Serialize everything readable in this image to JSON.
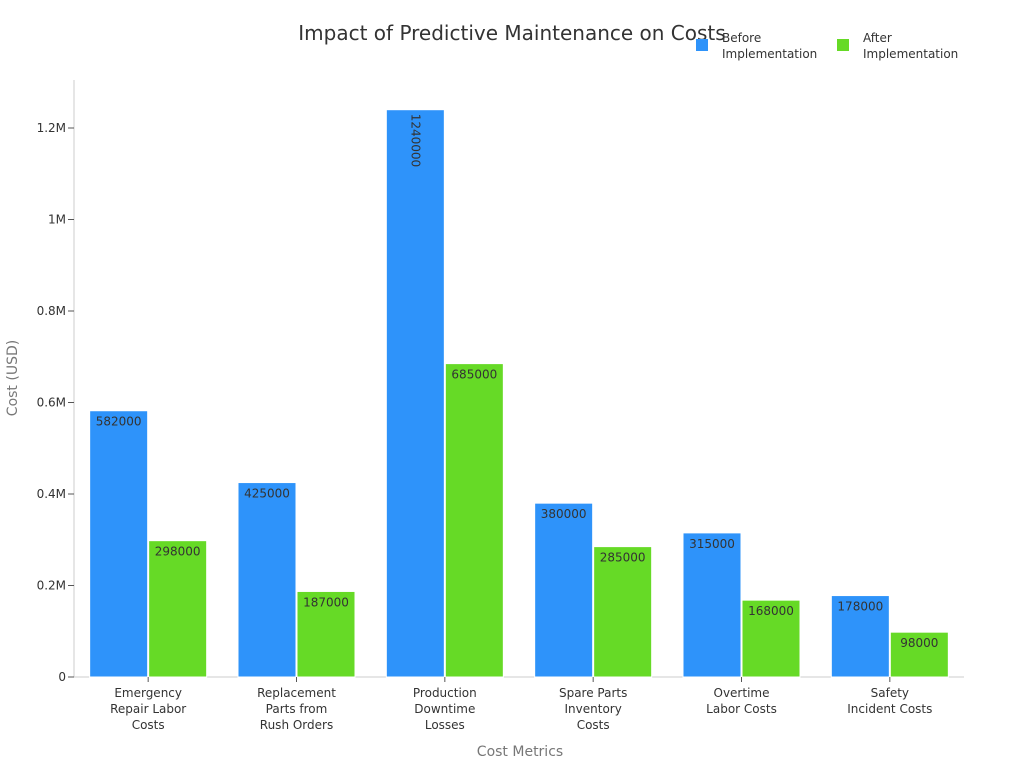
{
  "chart_data": {
    "type": "bar",
    "title": "Impact of Predictive Maintenance on Costs",
    "xlabel": "Cost Metrics",
    "ylabel": "Cost (USD)",
    "categories": [
      [
        "Emergency",
        "Repair Labor",
        "Costs"
      ],
      [
        "Replacement",
        "Parts from",
        "Rush Orders"
      ],
      [
        "Production",
        "Downtime",
        "Losses"
      ],
      [
        "Spare Parts",
        "Inventory",
        "Costs"
      ],
      [
        "Overtime",
        "Labor Costs"
      ],
      [
        "Safety",
        "Incident Costs"
      ]
    ],
    "series": [
      {
        "name": [
          "Before",
          "Implementation"
        ],
        "color": "#2e93fa",
        "values": [
          582000,
          425000,
          1240000,
          380000,
          315000,
          178000
        ]
      },
      {
        "name": [
          "After",
          "Implementation"
        ],
        "color": "#66da26",
        "values": [
          298000,
          187000,
          685000,
          285000,
          168000,
          98000
        ]
      }
    ],
    "ylim": [
      0,
      1300000
    ],
    "yticks": [
      {
        "value": 0,
        "label": "0"
      },
      {
        "value": 200000,
        "label": "0.2M"
      },
      {
        "value": 400000,
        "label": "0.4M"
      },
      {
        "value": 600000,
        "label": "0.6M"
      },
      {
        "value": 800000,
        "label": "0.8M"
      },
      {
        "value": 1000000,
        "label": "1M"
      },
      {
        "value": 1200000,
        "label": "1.2M"
      }
    ],
    "rotated_label_categories": [
      2
    ],
    "grid": false,
    "legend_position": "top-right"
  }
}
